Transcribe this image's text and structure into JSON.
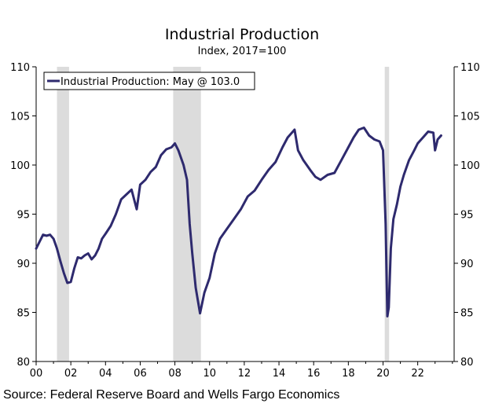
{
  "chart_data": {
    "type": "line",
    "title": "Industrial Production",
    "subtitle": "Index, 2017=100",
    "source": "Source: Federal Reserve Board and Wells Fargo Economics",
    "xlabel": "",
    "ylabel": "",
    "xlim": [
      2000,
      2024.1
    ],
    "ylim": [
      80,
      110
    ],
    "x_tick_values": [
      2000,
      2002,
      2004,
      2006,
      2008,
      2010,
      2012,
      2014,
      2016,
      2018,
      2020,
      2022
    ],
    "x_tick_labels": [
      "00",
      "02",
      "04",
      "06",
      "08",
      "10",
      "12",
      "14",
      "16",
      "18",
      "20",
      "22"
    ],
    "y_ticks": [
      80,
      85,
      90,
      95,
      100,
      105,
      110
    ],
    "grid": false,
    "legend": {
      "label": "Industrial Production: May @ 103.0",
      "placement": "top-left"
    },
    "recessions": [
      [
        2001.2,
        2001.9
      ],
      [
        2007.9,
        2009.5
      ],
      [
        2020.1,
        2020.35
      ]
    ],
    "line_color": "#2e2a6e",
    "recession_color": "#dcdcdc",
    "series": [
      {
        "name": "Industrial Production",
        "x": [
          2000.0,
          2000.2,
          2000.4,
          2000.6,
          2000.8,
          2001.0,
          2001.2,
          2001.4,
          2001.6,
          2001.8,
          2002.0,
          2002.2,
          2002.4,
          2002.6,
          2002.8,
          2003.0,
          2003.2,
          2003.4,
          2003.6,
          2003.8,
          2004.0,
          2004.3,
          2004.6,
          2004.9,
          2005.2,
          2005.5,
          2005.8,
          2006.0,
          2006.3,
          2006.6,
          2006.9,
          2007.2,
          2007.5,
          2007.8,
          2008.0,
          2008.2,
          2008.5,
          2008.7,
          2008.85,
          2009.0,
          2009.2,
          2009.45,
          2009.7,
          2010.0,
          2010.3,
          2010.6,
          2011.0,
          2011.4,
          2011.8,
          2012.2,
          2012.6,
          2013.0,
          2013.4,
          2013.8,
          2014.2,
          2014.5,
          2014.9,
          2015.1,
          2015.4,
          2015.8,
          2016.1,
          2016.4,
          2016.8,
          2017.2,
          2017.6,
          2018.0,
          2018.3,
          2018.6,
          2018.9,
          2019.2,
          2019.5,
          2019.8,
          2020.0,
          2020.15,
          2020.25,
          2020.33,
          2020.45,
          2020.6,
          2020.8,
          2021.0,
          2021.2,
          2021.5,
          2021.8,
          2022.0,
          2022.3,
          2022.6,
          2022.9,
          2023.0,
          2023.15,
          2023.35
        ],
        "values": [
          91.5,
          92.2,
          92.9,
          92.8,
          92.9,
          92.5,
          91.5,
          90.2,
          89.0,
          88.0,
          88.1,
          89.5,
          90.6,
          90.5,
          90.8,
          91.0,
          90.4,
          90.8,
          91.5,
          92.5,
          93.0,
          93.8,
          95.0,
          96.5,
          97.0,
          97.5,
          95.5,
          98.0,
          98.5,
          99.3,
          99.8,
          101.0,
          101.6,
          101.8,
          102.2,
          101.5,
          100.0,
          98.5,
          94.0,
          91.0,
          87.5,
          84.9,
          87.0,
          88.5,
          91.0,
          92.5,
          93.5,
          94.5,
          95.5,
          96.8,
          97.4,
          98.5,
          99.5,
          100.3,
          101.8,
          102.8,
          103.6,
          101.5,
          100.5,
          99.5,
          98.8,
          98.5,
          99.0,
          99.2,
          100.5,
          101.8,
          102.8,
          103.6,
          103.8,
          103.0,
          102.6,
          102.4,
          101.5,
          94.0,
          84.6,
          85.5,
          91.5,
          94.5,
          96.0,
          97.8,
          99.0,
          100.5,
          101.5,
          102.2,
          102.8,
          103.4,
          103.3,
          101.5,
          102.6,
          103.0
        ]
      }
    ]
  }
}
